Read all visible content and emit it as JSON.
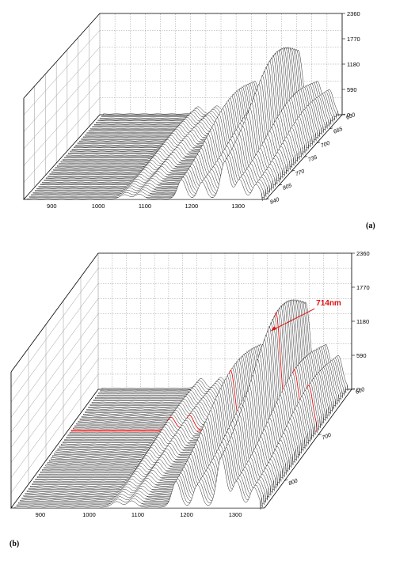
{
  "chart_data": [
    {
      "type": "area",
      "panel_label": "(a)",
      "x_ticks": [
        "900",
        "1000",
        "1100",
        "1200",
        "1300"
      ],
      "z_ticks": [
        "0",
        "590",
        "1180",
        "1770",
        "2360"
      ],
      "y_ticks": [
        "630",
        "665",
        "700",
        "735",
        "770",
        "805",
        "840"
      ],
      "xlim": [
        840,
        1360
      ],
      "zlim": [
        0,
        2360
      ],
      "ylim": [
        630,
        840
      ],
      "peaks": [
        {
          "x": 1053,
          "height": 230
        },
        {
          "x": 1090,
          "height": 260
        },
        {
          "x": 1175,
          "height": 1050
        },
        {
          "x": 1225,
          "height": 900
        },
        {
          "x": 1268,
          "height": 2050
        },
        {
          "x": 1305,
          "height": 1050
        },
        {
          "x": 1335,
          "height": 780
        }
      ],
      "grid": true
    },
    {
      "type": "area",
      "panel_label": "(b)",
      "x_ticks": [
        "900",
        "1000",
        "1100",
        "1200",
        "1300"
      ],
      "z_ticks": [
        "0",
        "590",
        "1180",
        "1770",
        "2360"
      ],
      "y_ticks": [
        "600",
        "700",
        "800"
      ],
      "xlim": [
        840,
        1360
      ],
      "zlim": [
        0,
        2360
      ],
      "ylim": [
        600,
        860
      ],
      "peaks": [
        {
          "x": 1053,
          "height": 230
        },
        {
          "x": 1090,
          "height": 260
        },
        {
          "x": 1175,
          "height": 1050
        },
        {
          "x": 1225,
          "height": 900
        },
        {
          "x": 1268,
          "height": 2050
        },
        {
          "x": 1305,
          "height": 1050
        },
        {
          "x": 1335,
          "height": 780
        }
      ],
      "annotation": {
        "text": "714nm",
        "x": 1268,
        "y": 714
      },
      "grid": true
    }
  ],
  "colors": {
    "trace": "#111111",
    "grid": "#9a9a9a",
    "highlight": "#e01010"
  }
}
